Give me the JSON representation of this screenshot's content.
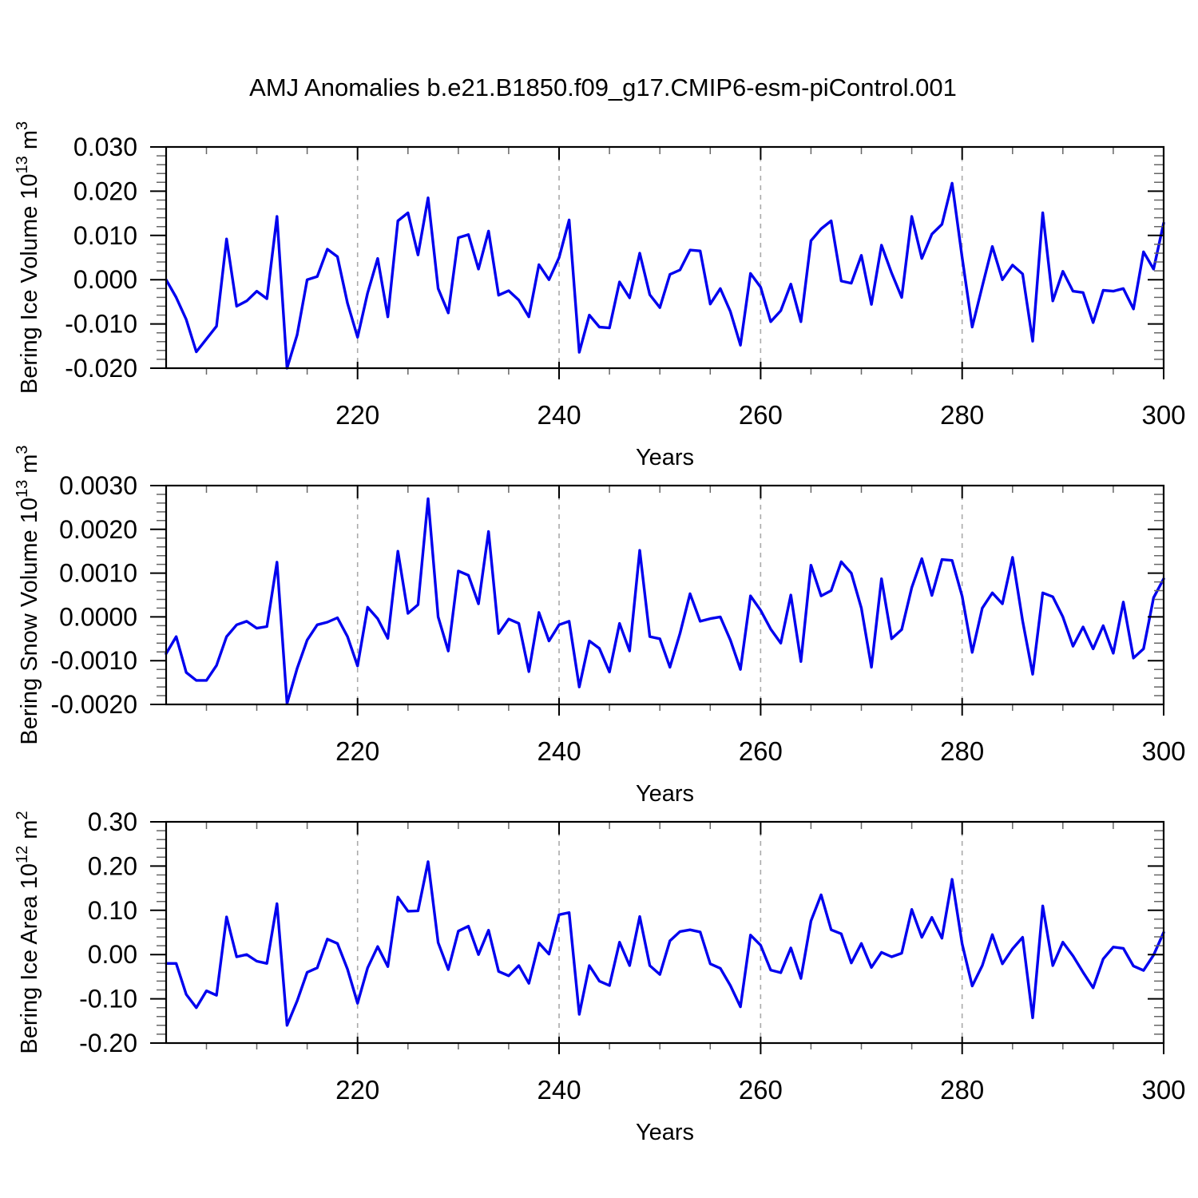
{
  "title": "AMJ Anomalies b.e21.B1850.f09_g17.CMIP6-esm-piControl.001",
  "colors": {
    "line": "#0000ee",
    "grid": "#aaaaaa",
    "axis": "#000000",
    "minor_tick": "#666666"
  },
  "chart_data": {
    "type": "line",
    "title": "AMJ Anomalies b.e21.B1850.f09_g17.CMIP6-esm-piControl.001",
    "legend": "none",
    "grid": "vertical dashed at 220,240,260,280",
    "x_axis": {
      "label": "Years",
      "start": 201,
      "end": 300,
      "major_ticks": [
        220,
        240,
        260,
        280,
        300
      ],
      "minor_step": 5,
      "grid_lines": [
        220,
        240,
        260,
        280
      ]
    },
    "panels": [
      {
        "name": "bering-ice-volume",
        "ylabel_parts": [
          {
            "t": "Bering Ice Volume 10"
          },
          {
            "t": "13",
            "sup": true
          },
          {
            "t": " m"
          },
          {
            "t": "3",
            "sup": true
          }
        ],
        "ymax": 0.03,
        "ymin": -0.02,
        "yminor_step": 0.002,
        "ytick_values": [
          0.03,
          0.02,
          0.01,
          0.0,
          -0.01,
          -0.02
        ],
        "ytick_labels": [
          "0.030",
          "0.020",
          "0.010",
          "0.000",
          "-0.010",
          "-0.020"
        ],
        "values": [
          0.0,
          -0.004,
          -0.009,
          -0.0163,
          -0.0134,
          -0.0105,
          0.0092,
          -0.006,
          -0.0048,
          -0.0026,
          -0.0043,
          0.0143,
          -0.02,
          -0.0125,
          0.0,
          0.0007,
          0.0069,
          0.0052,
          -0.0053,
          -0.013,
          -0.003,
          0.0048,
          -0.0084,
          0.0133,
          0.0151,
          0.0056,
          0.0185,
          -0.002,
          -0.0075,
          0.0095,
          0.0102,
          0.0024,
          0.011,
          -0.0035,
          -0.0025,
          -0.0046,
          -0.0084,
          0.0034,
          0.0,
          0.005,
          0.0135,
          -0.0164,
          -0.008,
          -0.0107,
          -0.0109,
          -0.0005,
          -0.0041,
          0.006,
          -0.0034,
          -0.0063,
          0.0012,
          0.0022,
          0.0067,
          0.0065,
          -0.0055,
          -0.002,
          -0.0072,
          -0.0148,
          0.0014,
          -0.0017,
          -0.0095,
          -0.007,
          -0.001,
          -0.0095,
          0.0088,
          0.0115,
          0.0133,
          -0.0003,
          -0.0008,
          0.0055,
          -0.0056,
          0.0078,
          0.0015,
          -0.004,
          0.0143,
          0.0048,
          0.0103,
          0.0125,
          0.0218,
          0.005,
          -0.0107,
          -0.0015,
          0.0075,
          0.0,
          0.0033,
          0.0013,
          -0.0139,
          0.0151,
          -0.0048,
          0.0019,
          -0.0026,
          -0.0029,
          -0.0097,
          -0.0024,
          -0.0026,
          -0.002,
          -0.0066,
          0.0063,
          0.0024,
          0.0128
        ]
      },
      {
        "name": "bering-snow-volume",
        "ylabel_parts": [
          {
            "t": "Bering Snow Volume 10"
          },
          {
            "t": "13",
            "sup": true
          },
          {
            "t": " m"
          },
          {
            "t": "3",
            "sup": true
          }
        ],
        "ymax": 0.003,
        "ymin": -0.002,
        "yminor_step": 0.0002,
        "ytick_values": [
          0.003,
          0.002,
          0.001,
          0.0,
          -0.001,
          -0.002
        ],
        "ytick_labels": [
          "0.0030",
          "0.0020",
          "0.0010",
          "0.0000",
          "-0.0010",
          "-0.0020"
        ],
        "values": [
          -0.00084,
          -0.00045,
          -0.00127,
          -0.00145,
          -0.00145,
          -0.00111,
          -0.00045,
          -0.00018,
          -0.0001,
          -0.00026,
          -0.00022,
          0.00125,
          -0.00198,
          -0.00118,
          -0.00053,
          -0.00018,
          -0.00012,
          -2e-05,
          -0.00045,
          -0.00112,
          0.00022,
          -4e-05,
          -0.00049,
          0.0015,
          8e-05,
          0.00028,
          0.0027,
          0.0,
          -0.00078,
          0.00105,
          0.00095,
          0.0003,
          0.00195,
          -0.00038,
          -5e-05,
          -0.00015,
          -0.00125,
          0.0001,
          -0.00055,
          -0.00018,
          -0.0001,
          -0.0016,
          -0.00055,
          -0.00072,
          -0.00126,
          -0.00015,
          -0.00078,
          0.00152,
          -0.00045,
          -0.0005,
          -0.00115,
          -0.00038,
          0.00053,
          -0.0001,
          -4e-05,
          0.0,
          -0.00053,
          -0.0012,
          0.00048,
          0.00015,
          -0.00028,
          -0.0006,
          0.0005,
          -0.00102,
          0.00118,
          0.00048,
          0.0006,
          0.00126,
          0.001,
          0.0002,
          -0.00115,
          0.00087,
          -0.0005,
          -0.00029,
          0.00067,
          0.00133,
          0.00049,
          0.00131,
          0.00129,
          0.00047,
          -0.00081,
          0.0002,
          0.00055,
          0.0003,
          0.00136,
          -9e-05,
          -0.00131,
          0.00055,
          0.00046,
          0.0,
          -0.00067,
          -0.00023,
          -0.00073,
          -0.0002,
          -0.00083,
          0.00034,
          -0.00094,
          -0.00073,
          0.00044,
          0.00087
        ]
      },
      {
        "name": "bering-ice-area",
        "ylabel_parts": [
          {
            "t": "Bering Ice Area 10"
          },
          {
            "t": "12",
            "sup": true
          },
          {
            "t": " m"
          },
          {
            "t": "2",
            "sup": true
          }
        ],
        "ymax": 0.3,
        "ymin": -0.2,
        "yminor_step": 0.02,
        "ytick_values": [
          0.3,
          0.2,
          0.1,
          0.0,
          -0.1,
          -0.2
        ],
        "ytick_labels": [
          "0.30",
          "0.20",
          "0.10",
          "0.00",
          "-0.10",
          "-0.20"
        ],
        "values": [
          -0.02,
          -0.02,
          -0.09,
          -0.12,
          -0.082,
          -0.092,
          0.085,
          -0.005,
          0.0,
          -0.015,
          -0.02,
          0.115,
          -0.16,
          -0.105,
          -0.04,
          -0.03,
          0.035,
          0.025,
          -0.033,
          -0.11,
          -0.03,
          0.018,
          -0.027,
          0.13,
          0.098,
          0.099,
          0.21,
          0.027,
          -0.034,
          0.053,
          0.064,
          0.0,
          0.055,
          -0.038,
          -0.048,
          -0.025,
          -0.065,
          0.026,
          0.001,
          0.09,
          0.095,
          -0.135,
          -0.025,
          -0.06,
          -0.07,
          0.028,
          -0.025,
          0.086,
          -0.025,
          -0.045,
          0.031,
          0.052,
          0.056,
          0.051,
          -0.021,
          -0.031,
          -0.07,
          -0.118,
          0.044,
          0.021,
          -0.035,
          -0.041,
          0.015,
          -0.054,
          0.076,
          0.135,
          0.056,
          0.047,
          -0.019,
          0.025,
          -0.029,
          0.005,
          -0.005,
          0.003,
          0.102,
          0.039,
          0.084,
          0.037,
          0.17,
          0.024,
          -0.071,
          -0.025,
          0.045,
          -0.021,
          0.013,
          0.039,
          -0.143,
          0.11,
          -0.025,
          0.028,
          -0.003,
          -0.04,
          -0.075,
          -0.01,
          0.017,
          0.014,
          -0.026,
          -0.036,
          -0.001,
          0.05
        ]
      }
    ]
  }
}
